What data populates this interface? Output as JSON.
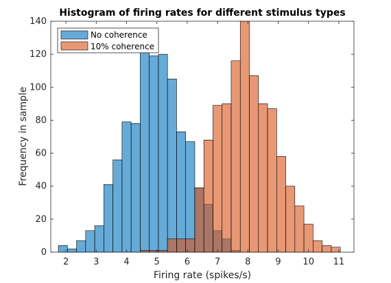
{
  "chart_data": {
    "type": "bar",
    "title": "Histogram of firing rates for different stimulus types",
    "xlabel": "Firing rate (spikes/s)",
    "ylabel": "Frequency in sample",
    "xlim": [
      1.5,
      11.5
    ],
    "ylim": [
      0,
      140
    ],
    "xticks": [
      2,
      3,
      4,
      5,
      6,
      7,
      8,
      9,
      10,
      11
    ],
    "yticks": [
      0,
      20,
      40,
      60,
      80,
      100,
      120,
      140
    ],
    "grid": false,
    "legend_position": "top-left",
    "series": [
      {
        "name": "No coherence",
        "color": "#0072BD",
        "bin_edges": [
          1.75,
          2.05,
          2.35,
          2.65,
          2.95,
          3.25,
          3.55,
          3.85,
          4.15,
          4.45,
          4.75,
          5.05,
          5.35,
          5.65,
          5.95,
          6.25,
          6.55,
          6.85,
          7.15,
          7.45,
          7.75
        ],
        "values": [
          4,
          2,
          7,
          13,
          16,
          41,
          56,
          79,
          78,
          122,
          119,
          120,
          105,
          73,
          67,
          39,
          29,
          13,
          8,
          1
        ]
      },
      {
        "name": "10% coherence",
        "color": "#D95319",
        "bin_edges": [
          4.45,
          4.75,
          5.05,
          5.35,
          5.65,
          5.95,
          6.25,
          6.55,
          6.85,
          7.15,
          7.45,
          7.75,
          8.05,
          8.35,
          8.65,
          8.95,
          9.25,
          9.55,
          9.85,
          10.15,
          10.45,
          10.75,
          11.05
        ],
        "values": [
          1,
          1,
          1,
          8,
          8,
          8,
          39,
          68,
          89,
          90,
          116,
          140,
          107,
          90,
          87,
          58,
          40,
          28,
          17,
          7,
          4,
          3
        ]
      }
    ]
  }
}
